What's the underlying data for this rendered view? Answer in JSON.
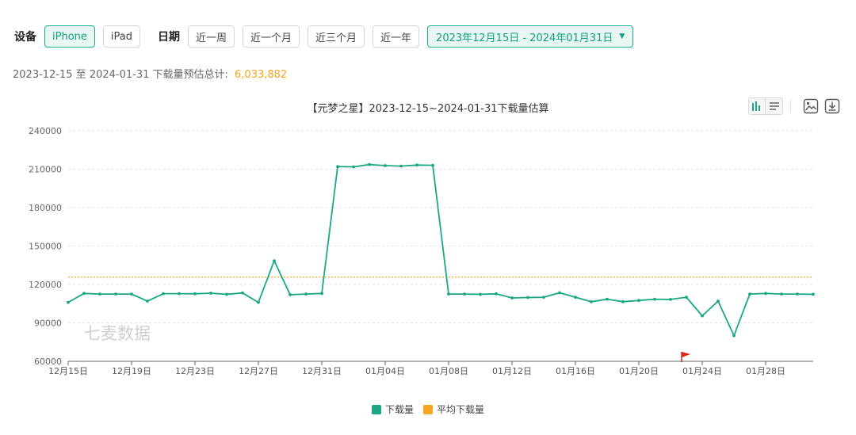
{
  "filters": {
    "device_label": "设备",
    "devices": [
      {
        "label": "iPhone",
        "active": true
      },
      {
        "label": "iPad",
        "active": false
      }
    ],
    "date_label": "日期",
    "date_presets": [
      "近一周",
      "近一个月",
      "近三个月",
      "近一年"
    ],
    "date_range": "2023年12月15日 - 2024年01月31日"
  },
  "summary": {
    "text": "2023-12-15 至 2024-01-31 下载量预估总计:",
    "total": "6,033,882"
  },
  "toolbar": {
    "icons": [
      "bar-chart-icon",
      "list-icon",
      "image-icon",
      "download-icon"
    ]
  },
  "colors": {
    "accent": "#19b08a",
    "download_line": "#19a883",
    "average_line": "#f5a623",
    "watermark": "#cfcfcf"
  },
  "chart_data": {
    "type": "line",
    "title": "【元梦之星】2023-12-15~2024-01-31下载量估算",
    "watermark": "七麦数据",
    "x": [
      "12月15日",
      "12月16日",
      "12月17日",
      "12月18日",
      "12月19日",
      "12月20日",
      "12月21日",
      "12月22日",
      "12月23日",
      "12月24日",
      "12月25日",
      "12月26日",
      "12月27日",
      "12月28日",
      "12月29日",
      "12月30日",
      "12月31日",
      "01月01日",
      "01月02日",
      "01月03日",
      "01月04日",
      "01月05日",
      "01月06日",
      "01月07日",
      "01月08日",
      "01月09日",
      "01月10日",
      "01月11日",
      "01月12日",
      "01月13日",
      "01月14日",
      "01月15日",
      "01月16日",
      "01月17日",
      "01月18日",
      "01月19日",
      "01月20日",
      "01月21日",
      "01月22日",
      "01月23日",
      "01月24日",
      "01月25日",
      "01月26日",
      "01月27日",
      "01月28日",
      "01月29日",
      "01月30日",
      "01月31日"
    ],
    "x_ticks": [
      "12月15日",
      "12月19日",
      "12月23日",
      "12月27日",
      "12月31日",
      "01月04日",
      "01月08日",
      "01月12日",
      "01月16日",
      "01月20日",
      "01月24日",
      "01月28日"
    ],
    "ylim": [
      60000,
      240000
    ],
    "y_ticks": [
      60000,
      90000,
      120000,
      150000,
      180000,
      210000,
      240000
    ],
    "grid": true,
    "legend_position": "bottom-center",
    "series": [
      {
        "name": "下载量",
        "values": [
          106000,
          113000,
          112500,
          112500,
          112500,
          107000,
          112800,
          112800,
          112700,
          113200,
          112300,
          113400,
          106000,
          138500,
          112000,
          112500,
          113000,
          212000,
          211800,
          213600,
          212800,
          212400,
          213200,
          213000,
          112500,
          112500,
          112300,
          112700,
          109500,
          109800,
          110000,
          113500,
          110000,
          106500,
          108500,
          106500,
          107500,
          108500,
          108300,
          110000,
          95500,
          107000,
          80000,
          112500,
          113000,
          112500,
          112500,
          112300
        ]
      },
      {
        "name": "平均下载量",
        "values": [
          125700,
          125700,
          125700,
          125700,
          125700,
          125700,
          125700,
          125700,
          125700,
          125700,
          125700,
          125700,
          125700,
          125700,
          125700,
          125700,
          125700,
          125700,
          125700,
          125700,
          125700,
          125700,
          125700,
          125700,
          125700,
          125700,
          125700,
          125700,
          125700,
          125700,
          125700,
          125700,
          125700,
          125700,
          125700,
          125700,
          125700,
          125700,
          125700,
          125700,
          125700,
          125700,
          125700,
          125700,
          125700,
          125700,
          125700,
          125700
        ]
      }
    ],
    "marker": {
      "x": "01月23日",
      "icon": "flag-icon"
    }
  }
}
